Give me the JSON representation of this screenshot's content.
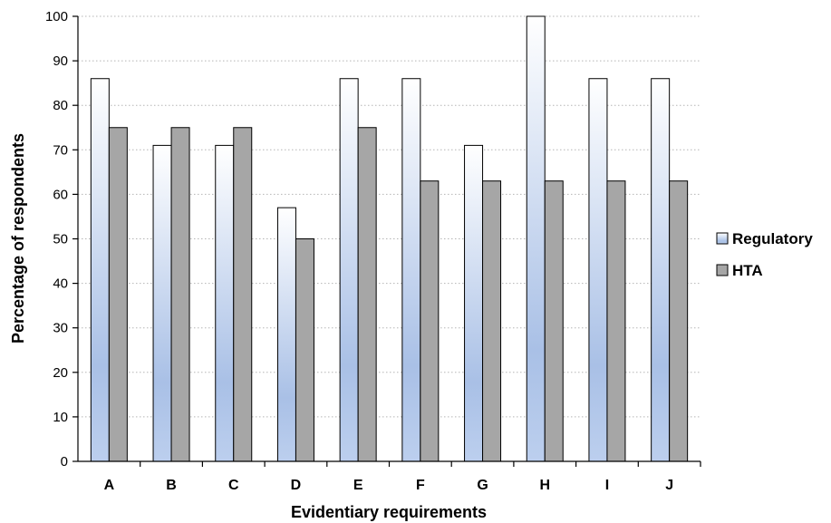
{
  "chart_data": {
    "type": "bar",
    "categories": [
      "A",
      "B",
      "C",
      "D",
      "E",
      "F",
      "G",
      "H",
      "I",
      "J"
    ],
    "series": [
      {
        "name": "Regulatory",
        "values": [
          86,
          71,
          71,
          57,
          86,
          86,
          71,
          100,
          86,
          86
        ],
        "color": "#a9c0e6"
      },
      {
        "name": "HTA",
        "values": [
          75,
          75,
          75,
          50,
          75,
          63,
          63,
          63,
          63,
          63
        ],
        "color": "#a6a6a6"
      }
    ],
    "title": "",
    "xlabel": "Evidentiary requirements",
    "ylabel": "Percentage of respondents",
    "ylim": [
      0,
      100
    ],
    "yticks": [
      0,
      10,
      20,
      30,
      40,
      50,
      60,
      70,
      80,
      90,
      100
    ],
    "grid": true,
    "legend": "right"
  }
}
